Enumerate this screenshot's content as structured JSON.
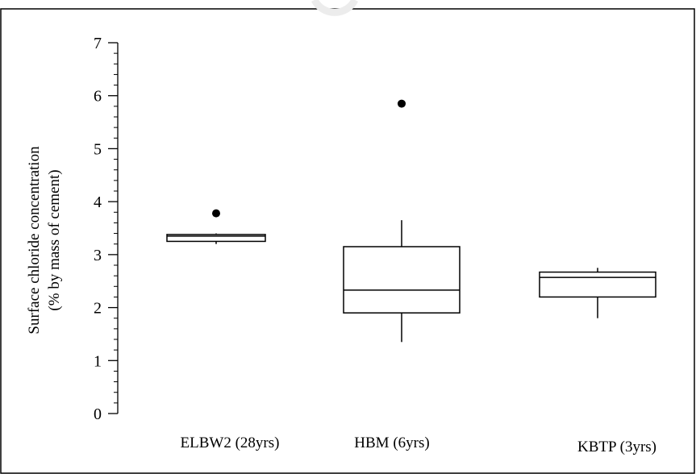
{
  "chart_data": {
    "type": "box",
    "ylabel_line1": "Surface chloride concentration",
    "ylabel_line2": "(% by mass of cement)",
    "ylim": [
      0,
      7
    ],
    "yticks": [
      "0",
      "1",
      "2",
      "3",
      "4",
      "5",
      "6",
      "7"
    ],
    "grid": false,
    "categories": [
      "ELBW2 (28yrs)",
      "HBM  (6yrs)",
      "KBTP (3yrs)"
    ],
    "boxes": [
      {
        "name": "ELBW2 (28yrs)",
        "whisker_low": 3.2,
        "q1": 3.25,
        "median": 3.35,
        "q3": 3.38,
        "whisker_high": 3.4,
        "outliers": [
          3.78
        ]
      },
      {
        "name": "HBM  (6yrs)",
        "whisker_low": 1.35,
        "q1": 1.9,
        "median": 2.33,
        "q3": 3.15,
        "whisker_high": 3.65,
        "outliers": [
          5.85
        ]
      },
      {
        "name": "KBTP (3yrs)",
        "whisker_low": 1.8,
        "q1": 2.2,
        "median": 2.57,
        "q3": 2.67,
        "whisker_high": 2.75,
        "outliers": []
      }
    ]
  }
}
